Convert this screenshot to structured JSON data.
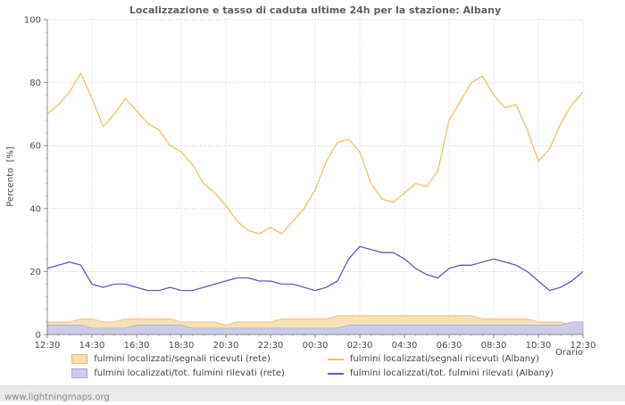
{
  "page": {
    "watermark": "www.lightningmaps.org"
  },
  "chart_data": {
    "type": "line",
    "title": "Localizzazione e tasso di caduta ultime 24h per la stazione: Albany",
    "xlabel": "Orario",
    "ylabel": "Percento  [%]",
    "ylim": [
      0,
      100
    ],
    "yticks": [
      0,
      20,
      40,
      60,
      80,
      100
    ],
    "grid": true,
    "legend_position": "bottom",
    "xtick_labels": [
      "12:30",
      "14:30",
      "16:30",
      "18:30",
      "20:30",
      "22:30",
      "00:30",
      "02:30",
      "04:30",
      "06:30",
      "08:30",
      "10:30",
      "12:30"
    ],
    "x": [
      "12:30",
      "13:00",
      "13:30",
      "14:00",
      "14:30",
      "15:00",
      "15:30",
      "16:00",
      "16:30",
      "17:00",
      "17:30",
      "18:00",
      "18:30",
      "19:00",
      "19:30",
      "20:00",
      "20:30",
      "21:00",
      "21:30",
      "22:00",
      "22:30",
      "23:00",
      "23:30",
      "00:00",
      "00:30",
      "01:00",
      "01:30",
      "02:00",
      "02:30",
      "03:00",
      "03:30",
      "04:00",
      "04:30",
      "05:00",
      "05:30",
      "06:00",
      "06:30",
      "07:00",
      "07:30",
      "08:00",
      "08:30",
      "09:00",
      "09:30",
      "10:00",
      "10:30",
      "11:00",
      "11:30",
      "12:00",
      "12:30"
    ],
    "series": [
      {
        "name": "fulmini localizzati/segnali ricevuti (rete)",
        "type": "area",
        "color": "#e3bd7d",
        "fill": "#f6e2b4",
        "values": [
          4,
          4,
          4,
          5,
          5,
          4,
          4,
          5,
          5,
          5,
          5,
          5,
          4,
          4,
          4,
          4,
          3,
          4,
          4,
          4,
          4,
          5,
          5,
          5,
          5,
          5,
          6,
          6,
          6,
          6,
          6,
          6,
          6,
          6,
          6,
          6,
          6,
          6,
          6,
          5,
          5,
          5,
          5,
          5,
          4,
          4,
          4,
          3,
          3
        ]
      },
      {
        "name": "fulmini localizzati/tot. fulmini rilevati (rete)",
        "type": "area",
        "color": "#a8a8d8",
        "fill": "#cdcdeb",
        "values": [
          3,
          3,
          3,
          3,
          2,
          2,
          2,
          2,
          3,
          3,
          3,
          3,
          3,
          2,
          2,
          2,
          2,
          2,
          2,
          2,
          2,
          2,
          2,
          2,
          2,
          2,
          2,
          3,
          3,
          3,
          3,
          3,
          3,
          3,
          3,
          3,
          3,
          3,
          3,
          3,
          3,
          3,
          3,
          3,
          3,
          3,
          3,
          4,
          4
        ]
      },
      {
        "name": "fulmini localizzati/segnali ricevuti (Albany)",
        "type": "line",
        "color": "#f0c268",
        "values": [
          70,
          73,
          77,
          83,
          75,
          66,
          70,
          75,
          71,
          67,
          65,
          60,
          58,
          54,
          48,
          45,
          41,
          36,
          33,
          32,
          34,
          32,
          36,
          40,
          46,
          55,
          61,
          62,
          58,
          48,
          43,
          42,
          45,
          48,
          47,
          52,
          68,
          74,
          80,
          82,
          76,
          72,
          73,
          65,
          55,
          59,
          67,
          73,
          77
        ]
      },
      {
        "name": "fulmini localizzati/tot. fulmini rilevati (Albany)",
        "type": "line",
        "color": "#5c5cc0",
        "values": [
          21,
          22,
          23,
          22,
          16,
          15,
          16,
          16,
          15,
          14,
          14,
          15,
          14,
          14,
          15,
          16,
          17,
          18,
          18,
          17,
          17,
          16,
          16,
          15,
          14,
          15,
          17,
          24,
          28,
          27,
          26,
          26,
          24,
          21,
          19,
          18,
          21,
          22,
          22,
          23,
          24,
          23,
          22,
          20,
          17,
          14,
          15,
          17,
          20
        ]
      }
    ]
  }
}
